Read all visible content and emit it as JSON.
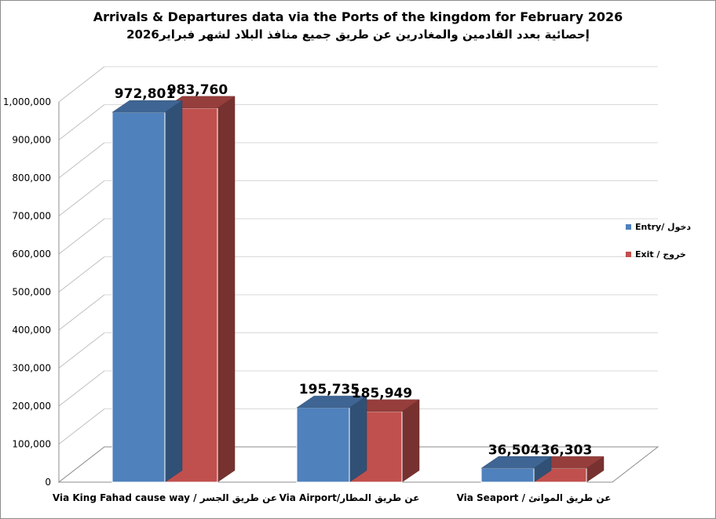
{
  "chart_data": {
    "type": "bar",
    "title": "Arrivals & Departures data via the Ports of the kingdom for February 2026",
    "subtitle": "إحصائية بعدد القادمين والمغادرين عن طريق جميع منافذ البلاد لشهر فبراير2026",
    "categories": [
      "Via King Fahad cause way / عن طريق الجسر",
      "Via Airport/عن طريق المطار",
      "Via Seaport / عن طريق الموانئ"
    ],
    "series": [
      {
        "name": "Entry/ دخول",
        "values": [
          972801,
          195735,
          36504
        ],
        "color": "#4f81bd"
      },
      {
        "name": "Exit / خروج",
        "values": [
          983760,
          185949,
          36303
        ],
        "color": "#c0504d"
      }
    ],
    "data_labels": [
      [
        "972,801",
        "195,735",
        "36,504"
      ],
      [
        "983,760",
        "185,949",
        "36,303"
      ]
    ],
    "y_ticks": [
      "0",
      "100,000",
      "200,000",
      "300,000",
      "400,000",
      "500,000",
      "600,000",
      "700,000",
      "800,000",
      "900,000",
      "1,000,000"
    ],
    "ylim": [
      0,
      1000000
    ],
    "grid": true,
    "legend_position": "right",
    "three_d": true
  }
}
